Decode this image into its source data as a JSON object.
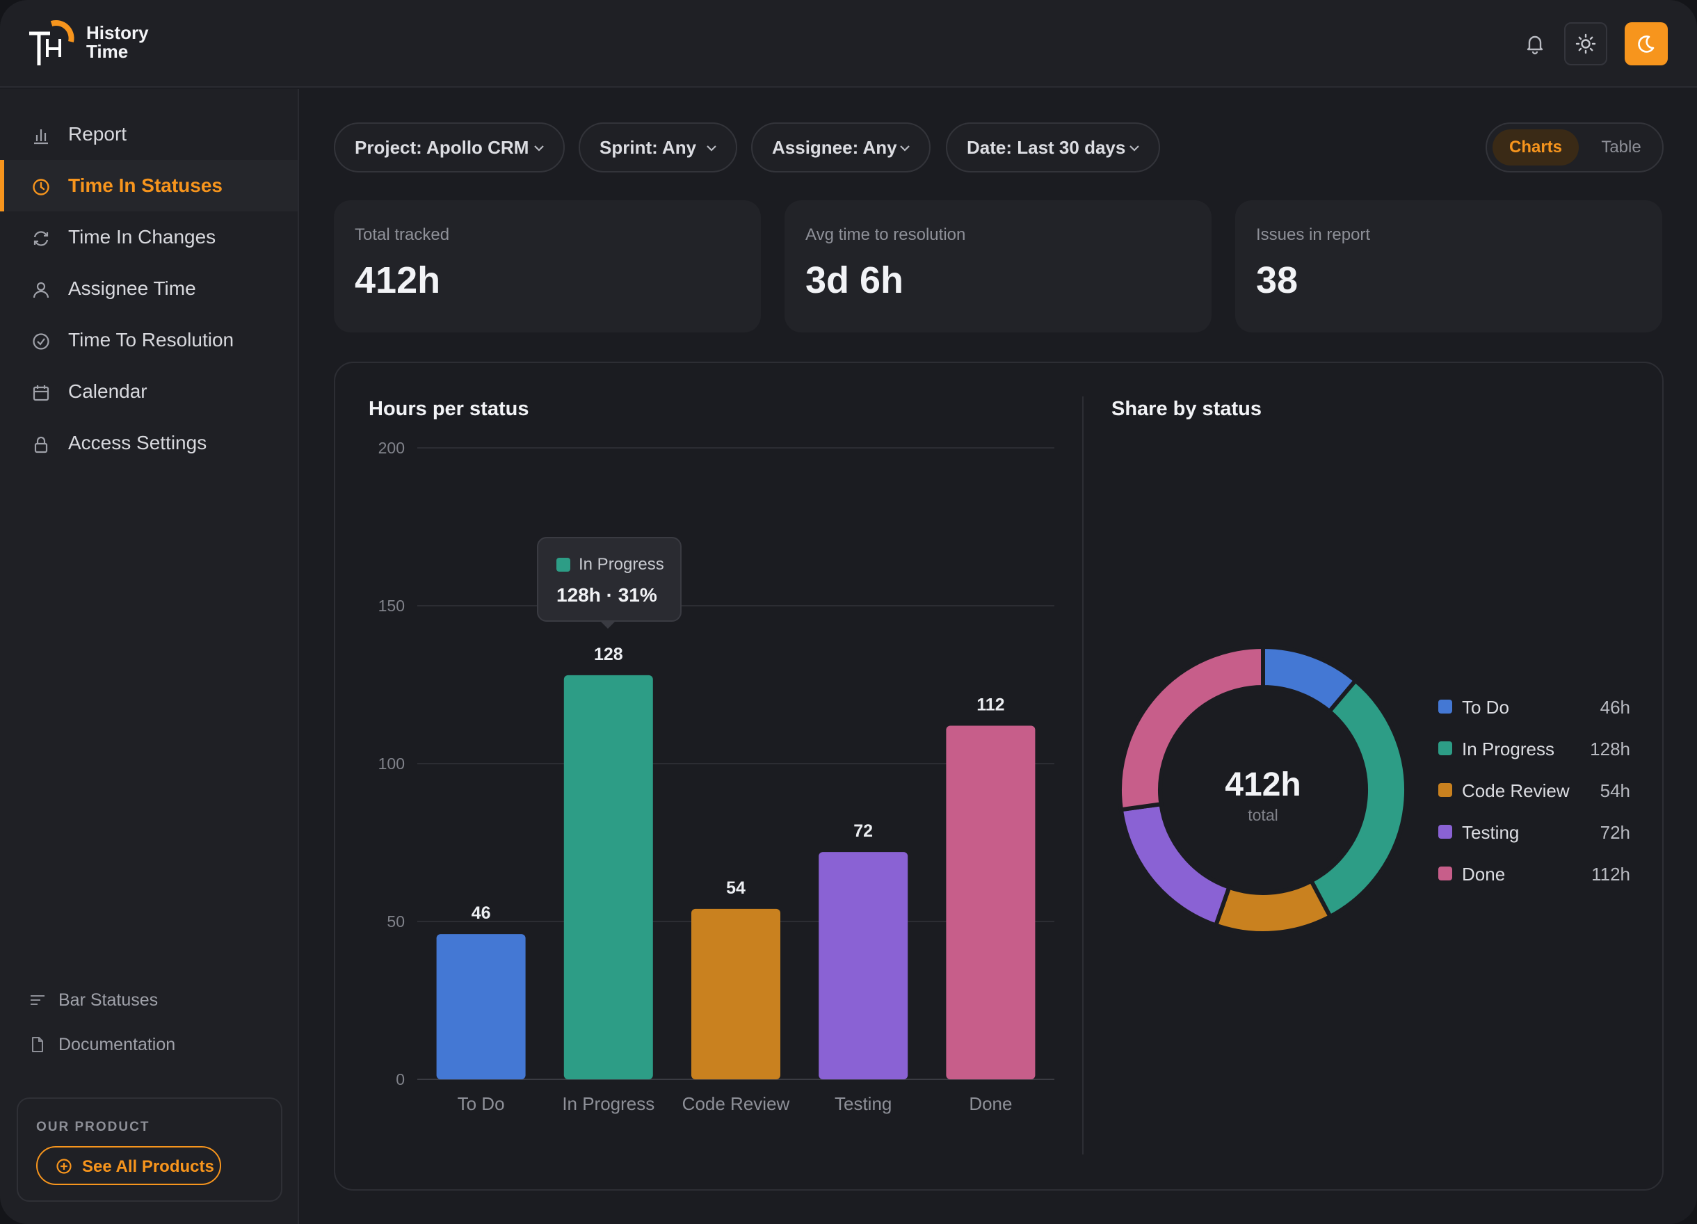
{
  "app": {
    "logo_line1": "History",
    "logo_line2": "Time",
    "accent": "#f7951d"
  },
  "header": {
    "icons": [
      "bell-icon",
      "sun-icon",
      "moon-icon"
    ]
  },
  "sidebar": {
    "items": [
      {
        "label": "Report",
        "icon": "bar-chart-icon"
      },
      {
        "label": "Time In Statuses",
        "icon": "clock-icon",
        "active": true
      },
      {
        "label": "Time In Changes",
        "icon": "refresh-icon"
      },
      {
        "label": "Assignee Time",
        "icon": "user-icon"
      },
      {
        "label": "Time To Resolution",
        "icon": "check-circle-icon"
      },
      {
        "label": "Calendar",
        "icon": "calendar-icon"
      },
      {
        "label": "Access Settings",
        "icon": "lock-icon"
      }
    ],
    "secondary": [
      {
        "label": "Bar Statuses",
        "icon": "lines-icon"
      },
      {
        "label": "Documentation",
        "icon": "document-icon"
      }
    ],
    "product": {
      "title": "OUR PRODUCT",
      "button": "See All Products"
    }
  },
  "filters": [
    {
      "label": "Project: Apollo CRM"
    },
    {
      "label": "Sprint: Any"
    },
    {
      "label": "Assignee: Any"
    },
    {
      "label": "Date: Last 30 days"
    }
  ],
  "view_toggle": {
    "selected": "Charts",
    "other": "Table"
  },
  "stats": [
    {
      "label": "Total tracked",
      "value": "412h"
    },
    {
      "label": "Avg time to resolution",
      "value": "3d 6h"
    },
    {
      "label": "Issues in report",
      "value": "38"
    }
  ],
  "bar_panel": {
    "title": "Hours per status"
  },
  "donut_panel": {
    "title": "Share by status",
    "center_value": "412h",
    "center_label": "total"
  },
  "tooltip": {
    "name": "In Progress",
    "value": "128h · 31%"
  },
  "chart_data": [
    {
      "type": "bar",
      "title": "Hours per status",
      "categories": [
        "To Do",
        "In Progress",
        "Code Review",
        "Testing",
        "Done"
      ],
      "values": [
        46,
        128,
        54,
        72,
        112
      ],
      "colors": [
        "#4478d4",
        "#2d9d86",
        "#c9811f",
        "#8a62d4",
        "#c75e8a"
      ],
      "ylim": [
        0,
        200
      ],
      "yticks": [
        0,
        50,
        100,
        150,
        200
      ],
      "grid": true
    },
    {
      "type": "pie",
      "title": "Share by status",
      "categories": [
        "To Do",
        "In Progress",
        "Code Review",
        "Testing",
        "Done"
      ],
      "values": [
        46,
        128,
        54,
        72,
        112
      ],
      "value_labels": [
        "46h",
        "128h",
        "54h",
        "72h",
        "112h"
      ],
      "colors": [
        "#4478d4",
        "#2d9d86",
        "#c9811f",
        "#8a62d4",
        "#c75e8a"
      ],
      "legend": "right"
    }
  ]
}
